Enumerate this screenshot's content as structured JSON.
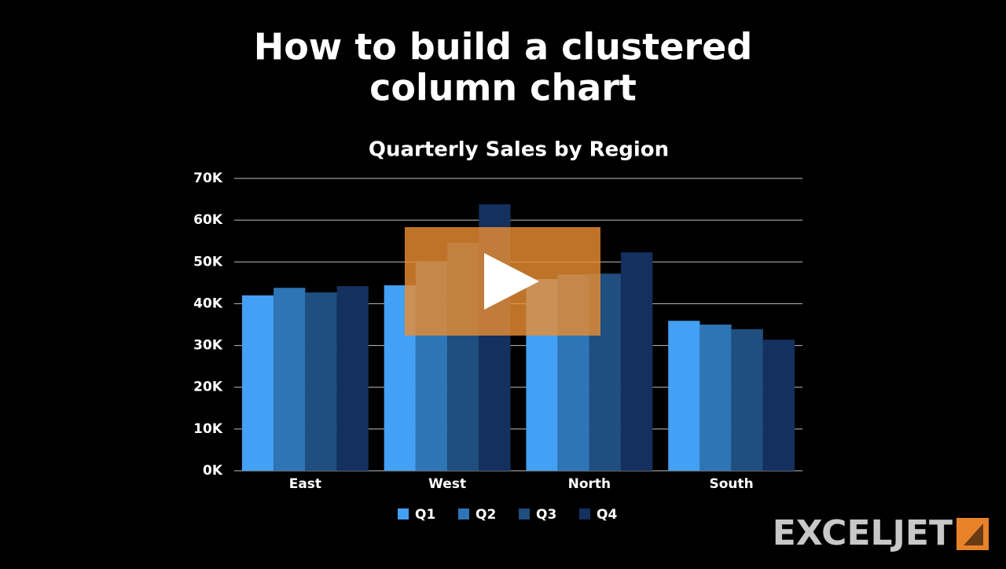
{
  "heading": [
    "How to build a clustered",
    "column chart"
  ],
  "brand": "EXCELJET",
  "chart_data": {
    "type": "bar",
    "title": "Quarterly Sales by Region",
    "categories": [
      "East",
      "West",
      "North",
      "South"
    ],
    "series": [
      {
        "name": "Q1",
        "color": "#44a0f4",
        "values": [
          42000,
          44400,
          45900,
          35900
        ]
      },
      {
        "name": "Q2",
        "color": "#2e75b6",
        "values": [
          43800,
          50200,
          47000,
          35000
        ]
      },
      {
        "name": "Q3",
        "color": "#1f4e7f",
        "values": [
          42700,
          54600,
          47200,
          33900
        ]
      },
      {
        "name": "Q4",
        "color": "#14305e",
        "values": [
          44200,
          63800,
          52300,
          31400
        ]
      }
    ],
    "ylim": [
      0,
      70000
    ],
    "yticks": [
      {
        "value": 0,
        "label": "0K"
      },
      {
        "value": 10000,
        "label": "10K"
      },
      {
        "value": 20000,
        "label": "20K"
      },
      {
        "value": 30000,
        "label": "30K"
      },
      {
        "value": 40000,
        "label": "40K"
      },
      {
        "value": 50000,
        "label": "50K"
      },
      {
        "value": 60000,
        "label": "60K"
      },
      {
        "value": 70000,
        "label": "70K"
      }
    ],
    "grid": true,
    "legend": "bottom"
  }
}
